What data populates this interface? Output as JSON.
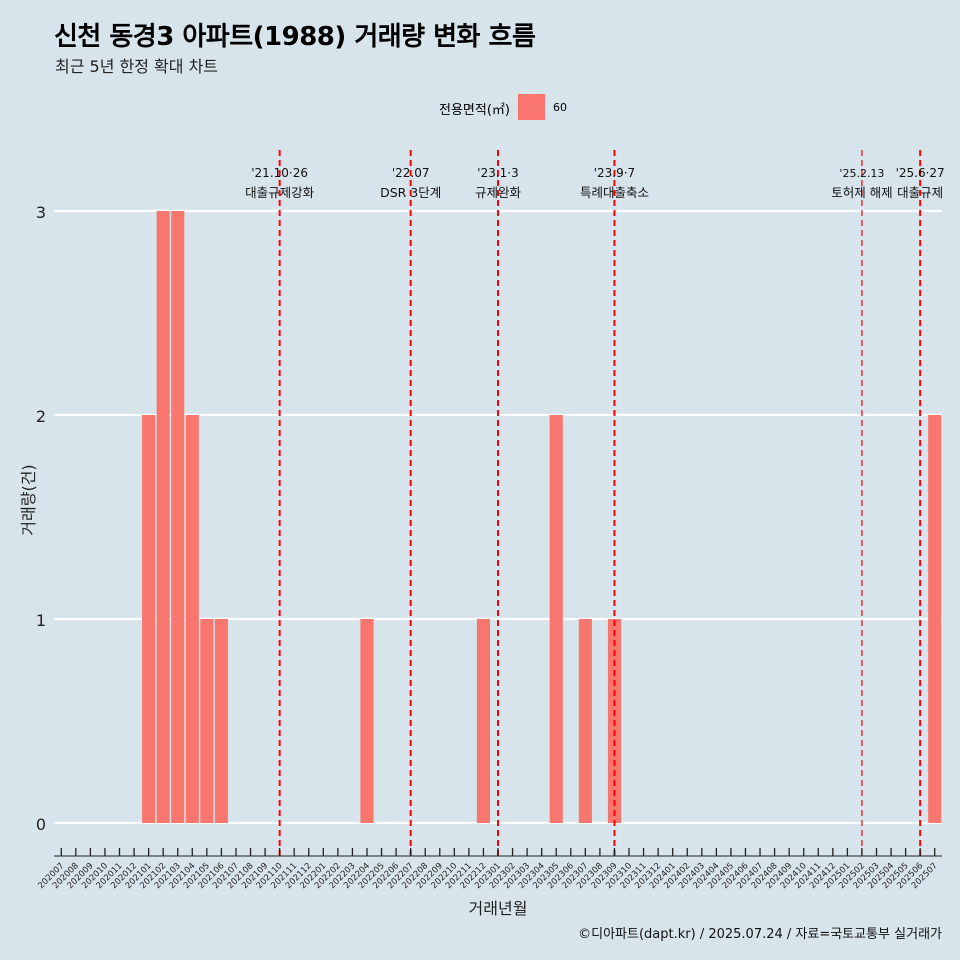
{
  "title": "신천 동경3 아파트(1988) 거래량 변화 흐름",
  "subtitle": "최근 5년 한정 확대 차트",
  "caption": "©디아파트(dapt.kr) / 2025.07.24 / 자료=국토교통부 실거래가",
  "colors": {
    "background": "#d7e4eb",
    "bar": "#f8766d",
    "event_line": "#ff0000",
    "grid": "#ffffff"
  },
  "chart_data": {
    "type": "bar",
    "xlabel": "거래년월",
    "ylabel": "거래량(건)",
    "ylim": [
      0,
      3
    ],
    "y_ticks": [
      0,
      1,
      2,
      3
    ],
    "legend": {
      "title": "전용면적(㎡)",
      "position": "top",
      "entries": [
        "60"
      ]
    },
    "categories": [
      "202007",
      "202008",
      "202009",
      "202010",
      "202011",
      "202012",
      "202101",
      "202102",
      "202103",
      "202104",
      "202105",
      "202106",
      "202107",
      "202108",
      "202109",
      "202110",
      "202111",
      "202112",
      "202201",
      "202202",
      "202203",
      "202204",
      "202205",
      "202206",
      "202207",
      "202208",
      "202209",
      "202210",
      "202211",
      "202212",
      "202301",
      "202302",
      "202303",
      "202304",
      "202305",
      "202306",
      "202307",
      "202308",
      "202309",
      "202310",
      "202311",
      "202312",
      "202401",
      "202402",
      "202403",
      "202404",
      "202405",
      "202406",
      "202407",
      "202408",
      "202409",
      "202410",
      "202411",
      "202412",
      "202501",
      "202502",
      "202503",
      "202504",
      "202505",
      "202506",
      "202507"
    ],
    "series": [
      {
        "name": "60",
        "values": [
          0,
          0,
          0,
          0,
          0,
          0,
          2,
          3,
          3,
          2,
          1,
          1,
          0,
          0,
          0,
          0,
          0,
          0,
          0,
          0,
          0,
          1,
          0,
          0,
          0,
          0,
          0,
          0,
          0,
          1,
          0,
          0,
          0,
          0,
          2,
          0,
          1,
          0,
          1,
          0,
          0,
          0,
          0,
          0,
          0,
          0,
          0,
          0,
          0,
          0,
          0,
          0,
          0,
          0,
          0,
          0,
          0,
          0,
          0,
          0,
          2
        ]
      }
    ],
    "events": [
      {
        "month": "202110",
        "date": "'21.10·26",
        "label": "대출규제강화"
      },
      {
        "month": "202207",
        "date": "'22.07",
        "label": "DSR 3단계"
      },
      {
        "month": "202301",
        "date": "'23.1·3",
        "label": "규제완화"
      },
      {
        "month": "202309",
        "date": "'23.9·7",
        "label": "특례대출축소"
      },
      {
        "month": "202502",
        "date": "'25.2.13",
        "label": "토허제 해제"
      },
      {
        "month": "202506",
        "date": "'25.6·27",
        "label": "대출규제"
      }
    ]
  }
}
